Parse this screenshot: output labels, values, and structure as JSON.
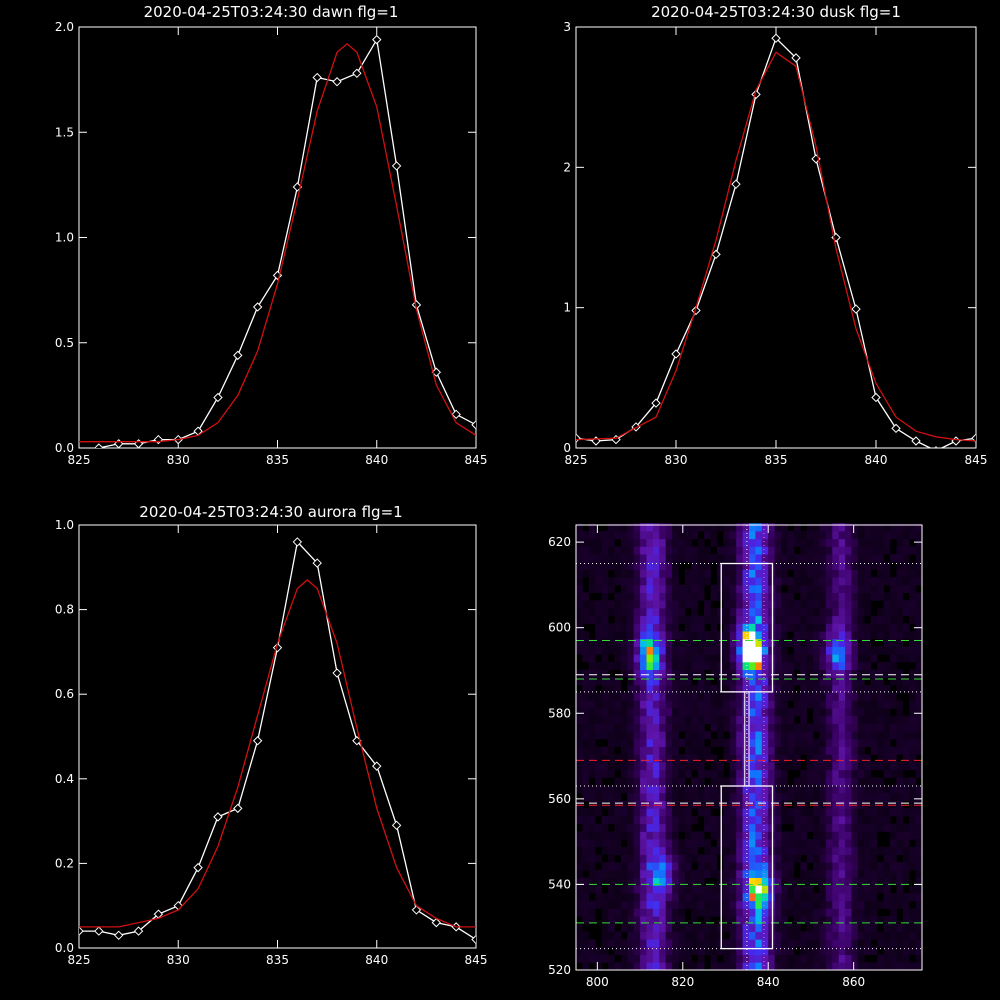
{
  "chart_data": [
    {
      "type": "line",
      "title": "2020-04-25T03:24:30 dawn flg=1",
      "xlim": [
        825,
        845
      ],
      "ylim": [
        0.0,
        2.0
      ],
      "xticks": [
        "825",
        "830",
        "835",
        "840",
        "845"
      ],
      "yticks": [
        "0.0",
        "0.5",
        "1.0",
        "1.5",
        "2.0"
      ],
      "series": [
        {
          "color": "#ffffff",
          "marker": "diamond",
          "x": [
            826,
            827,
            828,
            829,
            830,
            831,
            832,
            833,
            834,
            835,
            836,
            837,
            838,
            839,
            840,
            841,
            842,
            843,
            844,
            845
          ],
          "y": [
            0.0,
            0.02,
            0.02,
            0.04,
            0.04,
            0.08,
            0.24,
            0.44,
            0.67,
            0.82,
            1.24,
            1.76,
            1.74,
            1.78,
            1.94,
            1.34,
            0.68,
            0.36,
            0.16,
            0.11
          ]
        },
        {
          "color": "#d01010",
          "marker": "none",
          "x": [
            825,
            827,
            829,
            830,
            831,
            832,
            833,
            834,
            835,
            836,
            837,
            838,
            838.5,
            839,
            840,
            841,
            842,
            843,
            844,
            845
          ],
          "y": [
            0.03,
            0.03,
            0.03,
            0.04,
            0.06,
            0.12,
            0.25,
            0.46,
            0.78,
            1.18,
            1.6,
            1.88,
            1.92,
            1.88,
            1.62,
            1.15,
            0.66,
            0.3,
            0.12,
            0.06
          ]
        }
      ]
    },
    {
      "type": "line",
      "title": "2020-04-25T03:24:30 dusk flg=1",
      "xlim": [
        825,
        845
      ],
      "ylim": [
        0,
        3
      ],
      "xticks": [
        "825",
        "830",
        "835",
        "840",
        "845"
      ],
      "yticks": [
        "0",
        "1",
        "2",
        "3"
      ],
      "series": [
        {
          "color": "#ffffff",
          "marker": "diamond",
          "x": [
            825,
            826,
            827,
            828,
            829,
            830,
            831,
            832,
            833,
            834,
            835,
            836,
            837,
            838,
            839,
            840,
            841,
            842,
            843,
            844,
            845
          ],
          "y": [
            0.07,
            0.05,
            0.06,
            0.15,
            0.32,
            0.67,
            0.98,
            1.38,
            1.88,
            2.52,
            2.92,
            2.78,
            2.06,
            1.5,
            0.99,
            0.36,
            0.14,
            0.05,
            -0.02,
            0.05,
            0.07
          ]
        },
        {
          "color": "#d01010",
          "marker": "none",
          "x": [
            825,
            827,
            829,
            830,
            831,
            832,
            833,
            834,
            835,
            836,
            837,
            838,
            839,
            840,
            841,
            842,
            843,
            844,
            845
          ],
          "y": [
            0.06,
            0.07,
            0.22,
            0.55,
            1.0,
            1.48,
            2.05,
            2.55,
            2.82,
            2.72,
            2.15,
            1.42,
            0.85,
            0.46,
            0.22,
            0.12,
            0.08,
            0.06,
            0.05
          ]
        }
      ]
    },
    {
      "type": "line",
      "title": "2020-04-25T03:24:30 aurora flg=1",
      "xlim": [
        825,
        845
      ],
      "ylim": [
        0.0,
        1.0
      ],
      "xticks": [
        "825",
        "830",
        "835",
        "840",
        "845"
      ],
      "yticks": [
        "0.0",
        "0.2",
        "0.4",
        "0.6",
        "0.8",
        "1.0"
      ],
      "series": [
        {
          "color": "#ffffff",
          "marker": "diamond",
          "x": [
            825,
            826,
            827,
            828,
            829,
            830,
            831,
            832,
            833,
            834,
            835,
            836,
            837,
            838,
            839,
            840,
            841,
            842,
            843,
            844,
            845
          ],
          "y": [
            0.04,
            0.04,
            0.03,
            0.04,
            0.08,
            0.1,
            0.19,
            0.31,
            0.33,
            0.49,
            0.71,
            0.96,
            0.91,
            0.65,
            0.49,
            0.43,
            0.29,
            0.09,
            0.06,
            0.05,
            0.02
          ]
        },
        {
          "color": "#d01010",
          "marker": "none",
          "x": [
            825,
            827,
            829,
            830,
            831,
            832,
            833,
            834,
            835,
            836,
            836.5,
            837,
            838,
            839,
            840,
            841,
            842,
            843,
            844,
            845
          ],
          "y": [
            0.05,
            0.05,
            0.07,
            0.09,
            0.14,
            0.24,
            0.38,
            0.55,
            0.72,
            0.85,
            0.87,
            0.85,
            0.72,
            0.52,
            0.33,
            0.19,
            0.1,
            0.07,
            0.05,
            0.05
          ]
        }
      ]
    },
    {
      "type": "heatmap",
      "xlim": [
        795,
        876
      ],
      "ylim": [
        520,
        624
      ],
      "xticks": [
        "800",
        "820",
        "840",
        "860"
      ],
      "yticks": [
        "520",
        "540",
        "560",
        "580",
        "600",
        "620"
      ],
      "columns": [
        {
          "x": 813,
          "peak": 0.55,
          "spread": 3.0
        },
        {
          "x": 837,
          "peak": 0.85,
          "spread": 3.2
        },
        {
          "x": 857,
          "peak": 0.3,
          "spread": 2.8
        }
      ],
      "hotspots": [
        {
          "x": 836,
          "y": 595,
          "value": 1.0
        },
        {
          "x": 838,
          "y": 539,
          "value": 0.62
        },
        {
          "x": 812,
          "y": 594,
          "value": 0.48
        },
        {
          "x": 815,
          "y": 542,
          "value": 0.4
        },
        {
          "x": 856,
          "y": 594,
          "value": 0.35
        }
      ],
      "boxes": [
        {
          "x0": 829,
          "x1": 841,
          "y0": 585,
          "y1": 615
        },
        {
          "x0": 829,
          "x1": 841,
          "y0": 525,
          "y1": 563
        }
      ],
      "connector_x": [
        834.5,
        835.5
      ],
      "vertical_lines": [
        {
          "x": 835,
          "color": "#ffffff"
        },
        {
          "x": 839,
          "color": "#ff66ff"
        }
      ],
      "horizontal_lines": [
        {
          "y": 615,
          "color": "#ffffff",
          "style": "dotted"
        },
        {
          "y": 597,
          "color": "#33dd33",
          "style": "dashed"
        },
        {
          "y": 589,
          "color": "#ffffff",
          "style": "dashed"
        },
        {
          "y": 588,
          "color": "#33dd33",
          "style": "dashed"
        },
        {
          "y": 585,
          "color": "#ffffff",
          "style": "dotted"
        },
        {
          "y": 569,
          "color": "#ee2222",
          "style": "dashed"
        },
        {
          "y": 563,
          "color": "#ffffff",
          "style": "dotted"
        },
        {
          "y": 559,
          "color": "#ffffff",
          "style": "dashed"
        },
        {
          "y": 558.5,
          "color": "#ee2222",
          "style": "dashed"
        },
        {
          "y": 540,
          "color": "#33dd33",
          "style": "dashed"
        },
        {
          "y": 531,
          "color": "#33dd33",
          "style": "dashed"
        },
        {
          "y": 525,
          "color": "#ffffff",
          "style": "dotted"
        }
      ]
    }
  ]
}
